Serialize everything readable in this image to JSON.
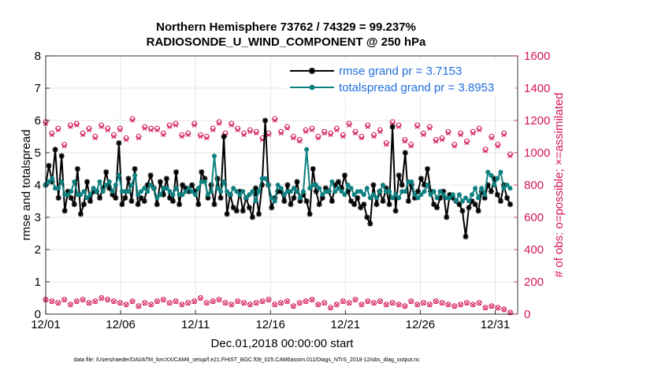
{
  "chart_data": {
    "type": "line",
    "title_line1": "Northern Hemisphere 73762 / 74329 = 99.237%",
    "title_line2": "RADIOSONDE_U_WIND_COMPONENT @ 250 hPa",
    "xlabel": "Dec.01,2018 00:00:00 start",
    "ylabel_left": "rmse and totalspread",
    "ylabel_right": "# of obs: o=possible; ×=assimilated",
    "footnote": "data file: /Users/raeder/DAI/ATM_forcXX/CAM6_setup/f.e21.FHIST_BGC.f09_025.CAM6assim.011/Diags_NTrS_2018-12/obs_diag_output.nc",
    "x_ticks": [
      "12/01",
      "12/06",
      "12/11",
      "12/16",
      "12/21",
      "12/26",
      "12/31"
    ],
    "x_tick_days": [
      0,
      5,
      10,
      15,
      20,
      25,
      30
    ],
    "xlim": [
      0,
      31.5
    ],
    "y_left_ticks": [
      "0",
      "1",
      "2",
      "3",
      "4",
      "5",
      "6",
      "7",
      "8"
    ],
    "ylim_left": [
      0,
      8
    ],
    "y_right_ticks": [
      "0",
      "200",
      "400",
      "600",
      "800",
      "1000",
      "1200",
      "1400",
      "1600"
    ],
    "ylim_right": [
      0,
      1600
    ],
    "grid": true,
    "legend_position": "top-right",
    "colors": {
      "rmse": "#000000",
      "totalspread": "#0e8080",
      "obs": "#d4145a",
      "legend_text": "#1f6fe0"
    },
    "series": [
      {
        "name": "rmse",
        "legend_label": "rmse grand pr = 3.7153",
        "values": [
          4.0,
          4.6,
          4.1,
          5.1,
          3.6,
          4.9,
          3.2,
          3.8,
          3.6,
          3.4,
          4.5,
          3.1,
          3.4,
          4.1,
          3.5,
          3.8,
          3.8,
          3.6,
          3.9,
          4.4,
          3.9,
          3.7,
          3.6,
          5.3,
          3.4,
          3.6,
          4.2,
          3.5,
          4.5,
          3.4,
          3.6,
          3.5,
          4.0,
          4.3,
          3.9,
          3.4,
          4.1,
          3.7,
          4.2,
          3.6,
          3.5,
          4.4,
          3.4,
          4.0,
          3.9,
          3.8,
          4.0,
          3.8,
          3.4,
          4.4,
          4.2,
          3.6,
          4.0,
          3.4,
          4.2,
          3.6,
          5.5,
          3.1,
          3.7,
          3.3,
          3.2,
          3.8,
          3.2,
          3.6,
          3.3,
          3.0,
          3.9,
          3.1,
          4.0,
          6.0,
          4.0,
          3.3,
          3.6,
          3.8,
          3.8,
          3.5,
          4.0,
          3.4,
          3.6,
          4.1,
          3.5,
          3.7,
          3.5,
          3.1,
          4.5,
          3.8,
          3.4,
          3.6,
          3.9,
          3.8,
          3.5,
          4.0,
          4.1,
          3.9,
          4.3,
          3.8,
          3.5,
          3.4,
          3.6,
          3.3,
          3.4,
          3.0,
          2.8,
          4.0,
          3.4,
          3.8,
          3.5,
          3.9,
          3.4,
          5.8,
          3.2,
          4.3,
          4.0,
          5.0,
          3.5,
          4.0,
          3.6,
          3.8,
          4.2,
          4.0,
          4.5,
          3.8,
          3.4,
          3.3,
          3.6,
          3.8,
          3.0,
          3.7,
          3.6,
          3.5,
          3.4,
          3.2,
          2.4,
          3.3,
          3.5,
          3.4,
          3.2,
          3.8,
          3.6,
          4.0,
          3.8,
          4.2,
          3.7,
          3.5,
          4.0,
          3.6,
          3.4
        ]
      },
      {
        "name": "totalspread",
        "legend_label": "totalspread grand pr = 3.8953",
        "values": [
          4.0,
          4.1,
          4.2,
          3.9,
          3.9,
          4.1,
          3.7,
          3.7,
          3.8,
          4.1,
          3.7,
          3.7,
          3.8,
          3.6,
          3.7,
          3.9,
          3.8,
          4.1,
          3.8,
          4.0,
          4.1,
          3.8,
          4.0,
          4.3,
          3.8,
          3.8,
          3.8,
          4.0,
          4.3,
          3.7,
          3.8,
          3.9,
          3.8,
          4.0,
          3.9,
          3.6,
          3.7,
          3.9,
          3.9,
          3.8,
          3.7,
          3.9,
          3.7,
          3.7,
          3.8,
          3.9,
          3.8,
          3.7,
          3.9,
          4.1,
          4.1,
          3.7,
          3.8,
          4.9,
          3.9,
          3.8,
          4.1,
          3.8,
          3.7,
          3.9,
          3.8,
          3.7,
          3.8,
          3.6,
          3.7,
          3.8,
          3.5,
          3.8,
          4.2,
          4.2,
          4.0,
          3.6,
          3.5,
          4.0,
          3.9,
          3.7,
          3.8,
          3.8,
          3.9,
          3.8,
          3.6,
          3.8,
          5.1,
          3.9,
          4.0,
          4.0,
          3.9,
          3.7,
          3.8,
          3.8,
          4.1,
          3.8,
          3.9,
          3.8,
          3.7,
          4.0,
          3.9,
          3.7,
          3.8,
          3.8,
          3.7,
          3.9,
          3.6,
          3.7,
          3.6,
          3.8,
          4.0,
          3.8,
          3.8,
          3.6,
          3.7,
          3.6,
          3.8,
          3.8,
          4.1,
          4.1,
          3.7,
          3.6,
          3.7,
          3.8,
          4.0,
          3.7,
          3.8,
          3.6,
          3.8,
          3.7,
          3.6,
          3.6,
          3.7,
          3.5,
          3.7,
          3.5,
          3.6,
          3.5,
          3.7,
          3.9,
          3.6,
          3.9,
          3.7,
          4.4,
          4.3,
          4.0,
          4.2,
          4.4,
          3.9,
          4.0,
          3.9
        ]
      }
    ],
    "obs_possible_upper": [
      1190,
      1120,
      1150,
      1050,
      1170,
      1180,
      1120,
      1150,
      1100,
      1170,
      1150,
      1110,
      1150,
      1090,
      1210,
      1100,
      1160,
      1150,
      1150,
      1120,
      1170,
      1180,
      1110,
      1120,
      1180,
      1110,
      1100,
      1150,
      1190,
      1120,
      1180,
      1150,
      1120,
      1140,
      1130,
      1090,
      1120,
      1210,
      1130,
      1160,
      1100,
      1080,
      1140,
      1150,
      1100,
      1130,
      1120,
      1150,
      1110,
      1180,
      1130,
      1100,
      1170,
      1110,
      1140,
      1060,
      1190,
      1170,
      1080,
      1050,
      1170,
      1120,
      1160,
      1080,
      1090,
      1130,
      1050,
      1120,
      1070,
      1130,
      1150,
      1020,
      1100,
      1050,
      1120,
      990
    ],
    "obs_assimilated_upper": [
      1180,
      1110,
      1140,
      1040,
      1160,
      1170,
      1110,
      1140,
      1090,
      1160,
      1140,
      1100,
      1140,
      1080,
      1200,
      1090,
      1150,
      1140,
      1140,
      1110,
      1160,
      1170,
      1100,
      1110,
      1170,
      1100,
      1090,
      1140,
      1180,
      1110,
      1170,
      1140,
      1110,
      1130,
      1120,
      1080,
      1110,
      1200,
      1120,
      1150,
      1090,
      1070,
      1130,
      1140,
      1090,
      1120,
      1110,
      1140,
      1100,
      1170,
      1120,
      1090,
      1160,
      1100,
      1130,
      1050,
      1180,
      1160,
      1070,
      1040,
      1160,
      1110,
      1150,
      1070,
      1080,
      1120,
      1040,
      1110,
      1060,
      1120,
      1140,
      1010,
      1090,
      1040,
      1110,
      980
    ],
    "obs_possible_lower": [
      90,
      80,
      70,
      90,
      60,
      80,
      90,
      70,
      80,
      100,
      90,
      80,
      70,
      60,
      80,
      50,
      70,
      60,
      80,
      90,
      70,
      80,
      60,
      70,
      80,
      100,
      70,
      80,
      90,
      70,
      60,
      80,
      70,
      60,
      70,
      80,
      90,
      60,
      70,
      80,
      50,
      70,
      80,
      90,
      60,
      70,
      40,
      60,
      80,
      70,
      90,
      60,
      80,
      70,
      80,
      60,
      70,
      60,
      50,
      80,
      60,
      70,
      60,
      80,
      70,
      60,
      50,
      60,
      70,
      60,
      70,
      40,
      50,
      40,
      30,
      10
    ],
    "obs_assimilated_lower": [
      88,
      78,
      68,
      88,
      58,
      78,
      88,
      68,
      78,
      98,
      88,
      78,
      68,
      58,
      78,
      48,
      68,
      58,
      78,
      88,
      68,
      78,
      58,
      68,
      78,
      98,
      68,
      78,
      88,
      68,
      58,
      78,
      68,
      58,
      68,
      78,
      88,
      58,
      68,
      78,
      48,
      68,
      78,
      88,
      58,
      68,
      38,
      58,
      78,
      68,
      88,
      58,
      78,
      68,
      78,
      58,
      68,
      58,
      48,
      78,
      58,
      68,
      58,
      78,
      68,
      58,
      48,
      58,
      68,
      58,
      68,
      38,
      48,
      38,
      28,
      8
    ]
  }
}
